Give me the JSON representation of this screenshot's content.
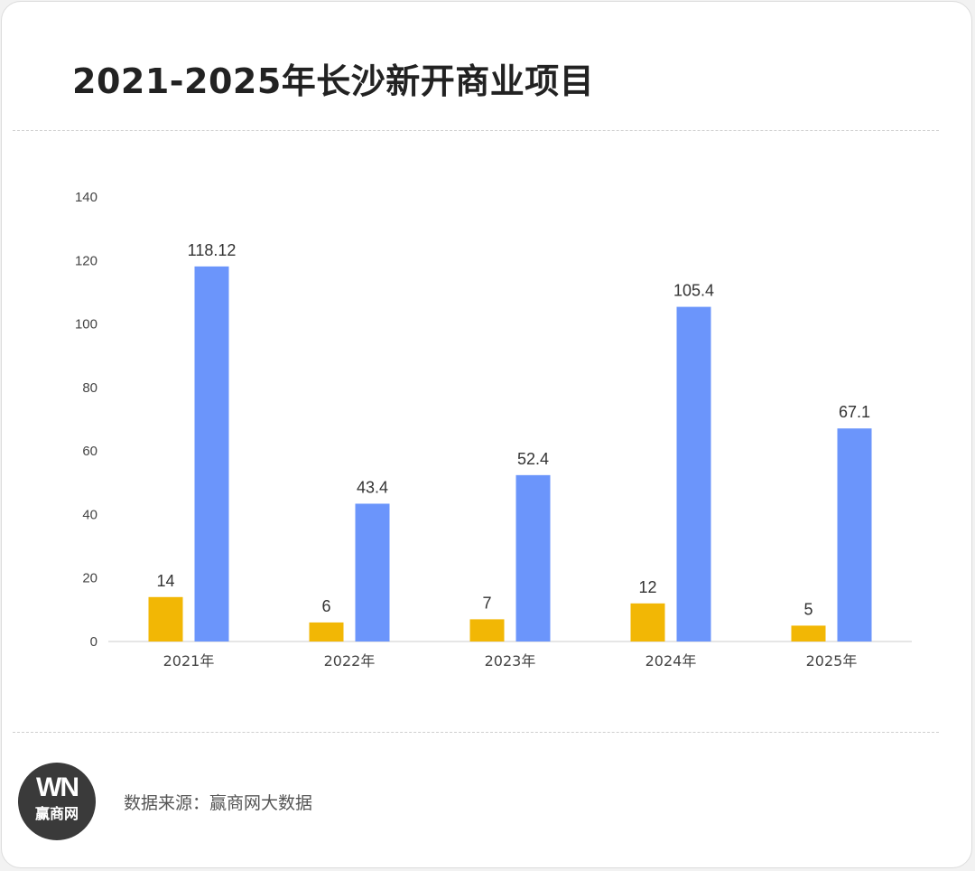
{
  "title": "2021-2025年长沙新开商业项目",
  "source": "数据来源：赢商网大数据",
  "logo": {
    "mark": "WN",
    "name": "赢商网",
    "icon": "winshang-logo-icon",
    "color": "#3a3a3a"
  },
  "chart_data": {
    "type": "bar",
    "title": "2021-2025年长沙新开商业项目",
    "xlabel": "",
    "ylabel": "",
    "categories": [
      "2021年",
      "2022年",
      "2023年",
      "2024年",
      "2025年"
    ],
    "series": [
      {
        "values": [
          14,
          6,
          7,
          12,
          5
        ],
        "color": "#f2b705"
      },
      {
        "values": [
          118.12,
          43.4,
          52.4,
          105.4,
          67.1
        ],
        "color": "#6b95fb"
      }
    ],
    "data_labels": [
      [
        "14",
        "6",
        "7",
        "12",
        "5"
      ],
      [
        "118.12",
        "43.4",
        "52.4",
        "105.4",
        "67.1"
      ]
    ],
    "y_ticks": [
      "0",
      "20",
      "40",
      "60",
      "80",
      "100",
      "120",
      "140"
    ],
    "ylim": [
      0,
      140
    ],
    "grid": false,
    "legend": "none"
  }
}
